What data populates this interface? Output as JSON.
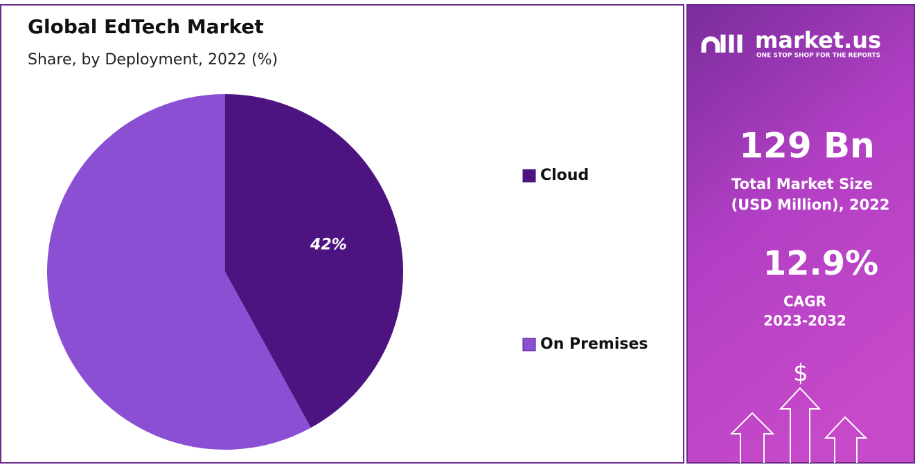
{
  "chart_data": {
    "type": "pie",
    "title": "Global EdTech Market",
    "subtitle": "Share, by Deployment, 2022 (%)",
    "categories": [
      "Cloud",
      "On Premises"
    ],
    "values": [
      42,
      58
    ],
    "value_labels": [
      "42%",
      null
    ],
    "colors": [
      "#4d1481",
      "#8a4fd2"
    ],
    "legend": "right"
  },
  "side_panel": {
    "brand": "market.us",
    "tagline": "ONE STOP SHOP FOR THE REPORTS",
    "market_size": "129 Bn",
    "market_size_label_1": "Total Market Size",
    "market_size_label_2": "(USD Million), 2022",
    "cagr": "12.9%",
    "cagr_label": "CAGR",
    "cagr_period": "2023-2032",
    "icon": "$"
  }
}
